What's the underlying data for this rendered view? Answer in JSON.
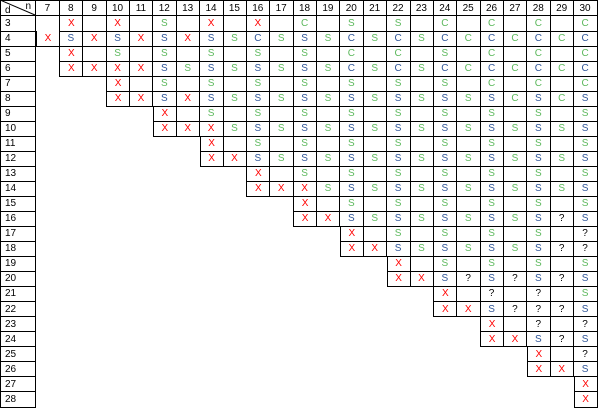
{
  "corner": {
    "n": "n",
    "d": "d"
  },
  "columns": [
    "7",
    "8",
    "9",
    "10",
    "11",
    "12",
    "13",
    "14",
    "15",
    "16",
    "17",
    "18",
    "19",
    "20",
    "21",
    "22",
    "23",
    "24",
    "25",
    "26",
    "27",
    "28",
    "29",
    "30"
  ],
  "colors": {
    "X": "#ff0000",
    "?": "#000000",
    "even": "#2f5597",
    "odd": "#5cb85c"
  },
  "rows": [
    {
      "d": "3",
      "cells": [
        null,
        "X",
        null,
        "X",
        null,
        "S",
        null,
        "X",
        null,
        "X",
        null,
        "C",
        null,
        "S",
        null,
        "S",
        null,
        "C",
        null,
        "C",
        null,
        "C",
        null,
        "C"
      ]
    },
    {
      "d": "4",
      "cells": [
        "X",
        "S",
        "X",
        "S",
        "X",
        "S",
        "X",
        "S",
        "S",
        "C",
        "S",
        "S",
        "S",
        "C",
        "S",
        "C",
        "S",
        "C",
        "C",
        "C",
        "C",
        "C",
        "C",
        "C"
      ]
    },
    {
      "d": "5",
      "cells": [
        null,
        "X",
        null,
        "S",
        null,
        "S",
        null,
        "S",
        null,
        "S",
        null,
        "S",
        null,
        "C",
        null,
        "C",
        null,
        "S",
        null,
        "C",
        null,
        "C",
        null,
        "C"
      ]
    },
    {
      "d": "6",
      "cells": [
        null,
        "X",
        "X",
        "X",
        "X",
        "S",
        "S",
        "S",
        "S",
        "S",
        "S",
        "S",
        "S",
        "C",
        "S",
        "C",
        "S",
        "C",
        "C",
        "C",
        "C",
        "C",
        "C",
        "C"
      ]
    },
    {
      "d": "7",
      "cells": [
        null,
        null,
        null,
        "X",
        null,
        "S",
        null,
        "S",
        null,
        "S",
        null,
        "S",
        null,
        "S",
        null,
        "S",
        null,
        "S",
        null,
        "C",
        null,
        "C",
        null,
        "C"
      ]
    },
    {
      "d": "8",
      "cells": [
        null,
        null,
        null,
        "X",
        "X",
        "S",
        "X",
        "S",
        "S",
        "S",
        "S",
        "S",
        "S",
        "S",
        "S",
        "S",
        "S",
        "S",
        "S",
        "S",
        "C",
        "S",
        "C",
        "S"
      ]
    },
    {
      "d": "9",
      "cells": [
        null,
        null,
        null,
        null,
        null,
        "X",
        null,
        "S",
        null,
        "S",
        null,
        "S",
        null,
        "S",
        null,
        "S",
        null,
        "S",
        null,
        "S",
        null,
        "S",
        null,
        "S"
      ]
    },
    {
      "d": "10",
      "cells": [
        null,
        null,
        null,
        null,
        null,
        "X",
        "X",
        "X",
        "S",
        "S",
        "S",
        "S",
        "S",
        "S",
        "S",
        "S",
        "S",
        "S",
        "S",
        "S",
        "S",
        "S",
        "S",
        "S"
      ]
    },
    {
      "d": "11",
      "cells": [
        null,
        null,
        null,
        null,
        null,
        null,
        null,
        "X",
        null,
        "S",
        null,
        "S",
        null,
        "S",
        null,
        "S",
        null,
        "S",
        null,
        "S",
        null,
        "S",
        null,
        "S"
      ]
    },
    {
      "d": "12",
      "cells": [
        null,
        null,
        null,
        null,
        null,
        null,
        null,
        "X",
        "X",
        "S",
        "S",
        "S",
        "S",
        "S",
        "S",
        "S",
        "S",
        "S",
        "S",
        "S",
        "S",
        "S",
        "S",
        "S"
      ]
    },
    {
      "d": "13",
      "cells": [
        null,
        null,
        null,
        null,
        null,
        null,
        null,
        null,
        null,
        "X",
        null,
        "S",
        null,
        "S",
        null,
        "S",
        null,
        "S",
        null,
        "S",
        null,
        "S",
        null,
        "S"
      ]
    },
    {
      "d": "14",
      "cells": [
        null,
        null,
        null,
        null,
        null,
        null,
        null,
        null,
        null,
        "X",
        "X",
        "X",
        "S",
        "S",
        "S",
        "S",
        "S",
        "S",
        "S",
        "S",
        "S",
        "S",
        "S",
        "S"
      ]
    },
    {
      "d": "15",
      "cells": [
        null,
        null,
        null,
        null,
        null,
        null,
        null,
        null,
        null,
        null,
        null,
        "X",
        null,
        "S",
        null,
        "S",
        null,
        "S",
        null,
        "S",
        null,
        "S",
        null,
        "S"
      ]
    },
    {
      "d": "16",
      "cells": [
        null,
        null,
        null,
        null,
        null,
        null,
        null,
        null,
        null,
        null,
        null,
        "X",
        "X",
        "S",
        "S",
        "S",
        "S",
        "S",
        "S",
        "S",
        "S",
        "S",
        "?",
        "S"
      ]
    },
    {
      "d": "17",
      "cells": [
        null,
        null,
        null,
        null,
        null,
        null,
        null,
        null,
        null,
        null,
        null,
        null,
        null,
        "X",
        null,
        "S",
        null,
        "S",
        null,
        "S",
        null,
        "S",
        null,
        "?"
      ]
    },
    {
      "d": "18",
      "cells": [
        null,
        null,
        null,
        null,
        null,
        null,
        null,
        null,
        null,
        null,
        null,
        null,
        null,
        "X",
        "X",
        "S",
        "S",
        "S",
        "S",
        "S",
        "S",
        "S",
        "?",
        "?"
      ]
    },
    {
      "d": "19",
      "cells": [
        null,
        null,
        null,
        null,
        null,
        null,
        null,
        null,
        null,
        null,
        null,
        null,
        null,
        null,
        null,
        "X",
        null,
        "S",
        null,
        "S",
        null,
        "S",
        null,
        "S"
      ]
    },
    {
      "d": "20",
      "cells": [
        null,
        null,
        null,
        null,
        null,
        null,
        null,
        null,
        null,
        null,
        null,
        null,
        null,
        null,
        null,
        "X",
        "X",
        "S",
        "?",
        "S",
        "?",
        "S",
        "?",
        "S"
      ]
    },
    {
      "d": "21",
      "cells": [
        null,
        null,
        null,
        null,
        null,
        null,
        null,
        null,
        null,
        null,
        null,
        null,
        null,
        null,
        null,
        null,
        null,
        "X",
        null,
        "?",
        null,
        "?",
        null,
        "S"
      ]
    },
    {
      "d": "22",
      "cells": [
        null,
        null,
        null,
        null,
        null,
        null,
        null,
        null,
        null,
        null,
        null,
        null,
        null,
        null,
        null,
        null,
        null,
        "X",
        "X",
        "S",
        "?",
        "?",
        "?",
        "S"
      ]
    },
    {
      "d": "23",
      "cells": [
        null,
        null,
        null,
        null,
        null,
        null,
        null,
        null,
        null,
        null,
        null,
        null,
        null,
        null,
        null,
        null,
        null,
        null,
        null,
        "X",
        null,
        "?",
        null,
        "?"
      ]
    },
    {
      "d": "24",
      "cells": [
        null,
        null,
        null,
        null,
        null,
        null,
        null,
        null,
        null,
        null,
        null,
        null,
        null,
        null,
        null,
        null,
        null,
        null,
        null,
        "X",
        "X",
        "S",
        "?",
        "S"
      ]
    },
    {
      "d": "25",
      "cells": [
        null,
        null,
        null,
        null,
        null,
        null,
        null,
        null,
        null,
        null,
        null,
        null,
        null,
        null,
        null,
        null,
        null,
        null,
        null,
        null,
        null,
        "X",
        null,
        "?"
      ]
    },
    {
      "d": "26",
      "cells": [
        null,
        null,
        null,
        null,
        null,
        null,
        null,
        null,
        null,
        null,
        null,
        null,
        null,
        null,
        null,
        null,
        null,
        null,
        null,
        null,
        null,
        "X",
        "X",
        "S"
      ]
    },
    {
      "d": "27",
      "cells": [
        null,
        null,
        null,
        null,
        null,
        null,
        null,
        null,
        null,
        null,
        null,
        null,
        null,
        null,
        null,
        null,
        null,
        null,
        null,
        null,
        null,
        null,
        null,
        "X"
      ]
    },
    {
      "d": "28",
      "cells": [
        null,
        null,
        null,
        null,
        null,
        null,
        null,
        null,
        null,
        null,
        null,
        null,
        null,
        null,
        null,
        null,
        null,
        null,
        null,
        null,
        null,
        null,
        null,
        "X"
      ]
    }
  ]
}
